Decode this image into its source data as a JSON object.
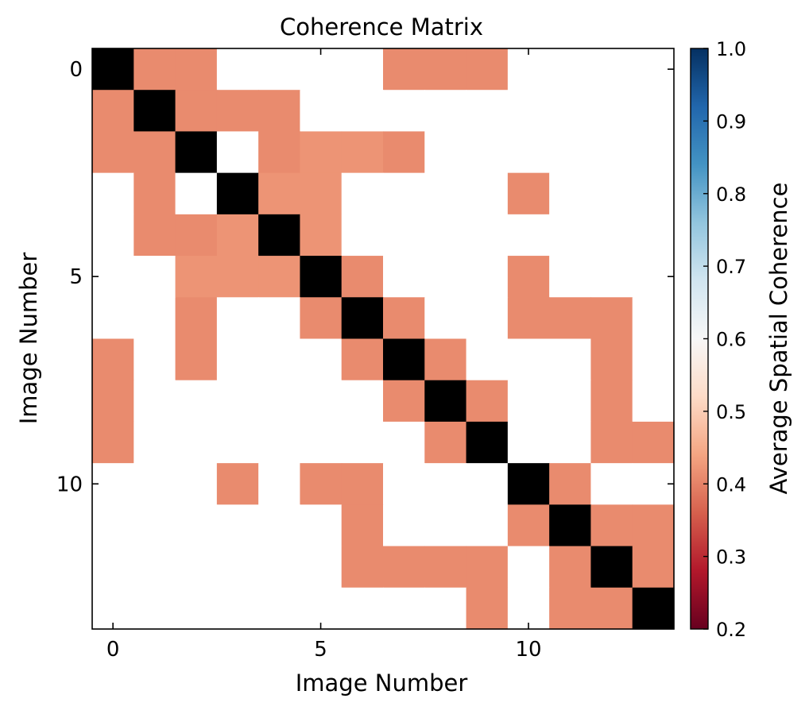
{
  "chart_data": {
    "type": "heatmap",
    "title": "Coherence Matrix",
    "xlabel": "Image Number",
    "ylabel": "Image Number",
    "x_ticks": [
      "0",
      "5",
      "10"
    ],
    "y_ticks": [
      "0",
      "5",
      "10"
    ],
    "x_tick_values": [
      0,
      5,
      10
    ],
    "y_tick_values": [
      0,
      5,
      10
    ],
    "size": 14,
    "diagonal_color": "#000000",
    "masked_color": "#ffffff",
    "matrix": [
      [
        1,
        0.41,
        0.41,
        null,
        null,
        null,
        null,
        0.41,
        0.41,
        0.41,
        null,
        null,
        null,
        null
      ],
      [
        0.41,
        1,
        0.41,
        0.41,
        0.41,
        null,
        null,
        null,
        null,
        null,
        null,
        null,
        null,
        null
      ],
      [
        0.41,
        0.41,
        1,
        null,
        0.41,
        0.42,
        0.42,
        0.41,
        null,
        null,
        null,
        null,
        null,
        null
      ],
      [
        null,
        0.41,
        null,
        1,
        0.42,
        0.42,
        null,
        null,
        null,
        null,
        0.41,
        null,
        null,
        null
      ],
      [
        null,
        0.41,
        0.41,
        0.42,
        1,
        0.42,
        null,
        null,
        null,
        null,
        null,
        null,
        null,
        null
      ],
      [
        null,
        null,
        0.42,
        0.42,
        0.42,
        1,
        0.41,
        null,
        null,
        null,
        0.41,
        null,
        null,
        null
      ],
      [
        null,
        null,
        0.41,
        null,
        null,
        0.41,
        1,
        0.41,
        null,
        null,
        0.41,
        0.41,
        0.41,
        null
      ],
      [
        0.41,
        null,
        0.41,
        null,
        null,
        null,
        0.41,
        1,
        0.41,
        null,
        null,
        null,
        0.41,
        null
      ],
      [
        0.41,
        null,
        null,
        null,
        null,
        null,
        null,
        0.41,
        1,
        0.41,
        null,
        null,
        0.41,
        null
      ],
      [
        0.41,
        null,
        null,
        null,
        null,
        null,
        null,
        null,
        0.41,
        1,
        null,
        null,
        0.41,
        0.41
      ],
      [
        null,
        null,
        null,
        0.41,
        null,
        0.41,
        0.41,
        null,
        null,
        null,
        1,
        0.41,
        null,
        null
      ],
      [
        null,
        null,
        null,
        null,
        null,
        null,
        0.41,
        null,
        null,
        null,
        0.41,
        1,
        0.41,
        0.41
      ],
      [
        null,
        null,
        null,
        null,
        null,
        null,
        0.41,
        0.41,
        0.41,
        0.41,
        null,
        0.41,
        1,
        0.41
      ],
      [
        null,
        null,
        null,
        null,
        null,
        null,
        null,
        null,
        null,
        0.41,
        null,
        0.41,
        0.41,
        1
      ]
    ],
    "colorbar": {
      "label": "Average Spatial Coherence",
      "range": [
        0.2,
        1.0
      ],
      "tick_values": [
        0.2,
        0.3,
        0.4,
        0.5,
        0.6,
        0.7,
        0.8,
        0.9,
        1.0
      ],
      "tick_labels": [
        "0.2",
        "0.3",
        "0.4",
        "0.5",
        "0.6",
        "0.7",
        "0.8",
        "0.9",
        "1.0"
      ],
      "colormap": "RdBu",
      "colormap_stops": [
        {
          "v": 0.0,
          "c": "#67001f"
        },
        {
          "v": 0.1,
          "c": "#b2182b"
        },
        {
          "v": 0.2,
          "c": "#d6604d"
        },
        {
          "v": 0.3,
          "c": "#f4a582"
        },
        {
          "v": 0.4,
          "c": "#fddbc7"
        },
        {
          "v": 0.5,
          "c": "#f7f7f7"
        },
        {
          "v": 0.6,
          "c": "#d1e5f0"
        },
        {
          "v": 0.7,
          "c": "#92c5de"
        },
        {
          "v": 0.8,
          "c": "#4393c3"
        },
        {
          "v": 0.9,
          "c": "#2166ac"
        },
        {
          "v": 1.0,
          "c": "#053061"
        }
      ]
    }
  }
}
